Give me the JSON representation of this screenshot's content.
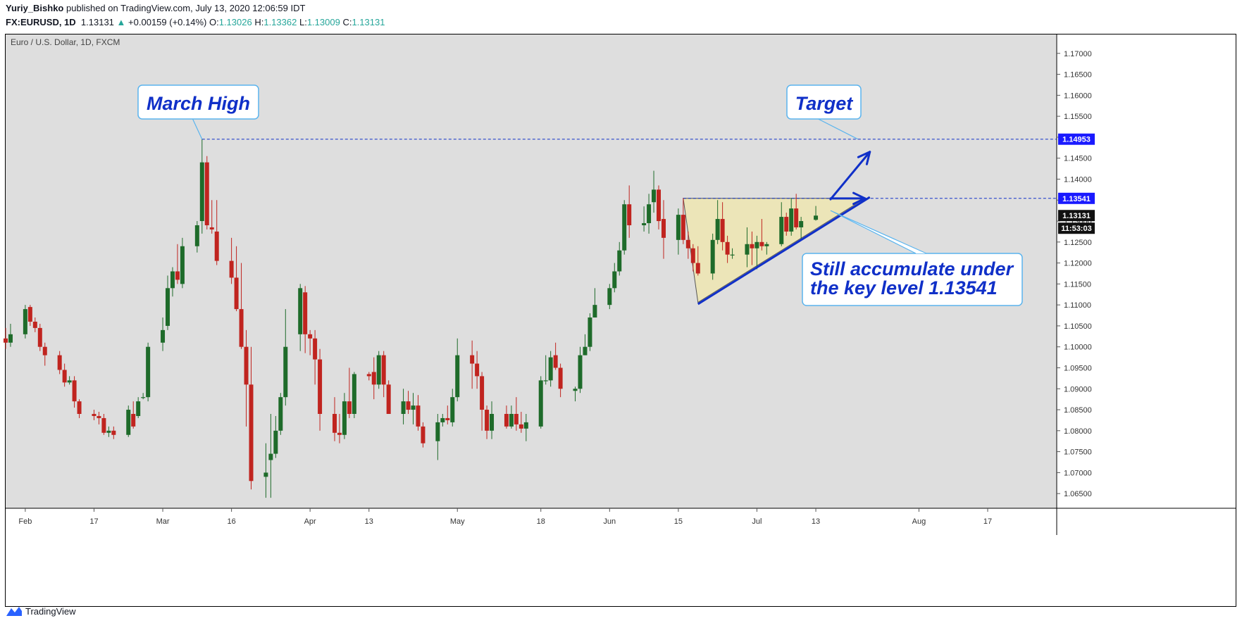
{
  "header": {
    "publisher": "Yuriy_Bishko",
    "published_text": "published on TradingView.com, July 13, 2020 12:06:59 IDT",
    "symbol": "FX:EURUSD, 1D",
    "last": "1.13131",
    "change": "+0.00159 (+0.14%)",
    "o_label": "O:",
    "o_value": "1.13026",
    "h_label": "H:",
    "h_value": "1.13362",
    "l_label": "L:",
    "l_value": "1.13009",
    "c_label": "C:",
    "c_value": "1.13131"
  },
  "footer": {
    "brand": "TradingView"
  },
  "colors": {
    "up": "#1e6b2a",
    "down": "#c0241f",
    "bg": "#dedede",
    "annotation": "#1030c8",
    "triangle": "#efe6b2"
  },
  "chart_data": {
    "type": "candlestick",
    "title": "Euro / U.S. Dollar, 1D, FXCM",
    "ylim": [
      1.0615,
      1.1745
    ],
    "y_ticks": [
      "1.17000",
      "1.16500",
      "1.16000",
      "1.15500",
      "1.15000",
      "1.14500",
      "1.14000",
      "1.13500",
      "1.13000",
      "1.12500",
      "1.12000",
      "1.11500",
      "1.11000",
      "1.10500",
      "1.10000",
      "1.09500",
      "1.09000",
      "1.08500",
      "1.08000",
      "1.07500",
      "1.07000",
      "1.06500"
    ],
    "x_ticks": [
      {
        "label": "Feb",
        "date": "2020-02-03"
      },
      {
        "label": "17",
        "date": "2020-02-17"
      },
      {
        "label": "Mar",
        "date": "2020-03-02"
      },
      {
        "label": "16",
        "date": "2020-03-16"
      },
      {
        "label": "Apr",
        "date": "2020-04-01"
      },
      {
        "label": "13",
        "date": "2020-04-13"
      },
      {
        "label": "May",
        "date": "2020-05-01"
      },
      {
        "label": "18",
        "date": "2020-05-18"
      },
      {
        "label": "Jun",
        "date": "2020-06-01"
      },
      {
        "label": "15",
        "date": "2020-06-15"
      },
      {
        "label": "Jul",
        "date": "2020-07-01"
      },
      {
        "label": "13",
        "date": "2020-07-13"
      },
      {
        "label": "Aug",
        "date": "2020-08-03"
      },
      {
        "label": "17",
        "date": "2020-08-17"
      }
    ],
    "price_labels": [
      {
        "value": "1.14953",
        "style": "blue"
      },
      {
        "value": "1.13541",
        "style": "blue"
      },
      {
        "value": "1.13131",
        "style": "black"
      },
      {
        "value": "11:53:03",
        "style": "black"
      }
    ],
    "levels": [
      {
        "name": "March High",
        "value": 1.14953
      },
      {
        "name": "Key level",
        "value": 1.13541
      }
    ],
    "annotations": [
      {
        "text": "March High"
      },
      {
        "text": "Target"
      },
      {
        "text_line1": "Still accumulate under",
        "text_line2": "the key level 1.13541"
      }
    ],
    "candles": [
      {
        "d": "2020-01-30",
        "o": 1.102,
        "h": 1.1045,
        "l": 1.0995,
        "c": 1.101
      },
      {
        "d": "2020-01-31",
        "o": 1.101,
        "h": 1.1055,
        "l": 1.1,
        "c": 1.103
      },
      {
        "d": "2020-02-03",
        "o": 1.103,
        "h": 1.11,
        "l": 1.102,
        "c": 1.109
      },
      {
        "d": "2020-02-04",
        "o": 1.1095,
        "h": 1.11,
        "l": 1.105,
        "c": 1.106
      },
      {
        "d": "2020-02-05",
        "o": 1.106,
        "h": 1.107,
        "l": 1.1035,
        "c": 1.1045
      },
      {
        "d": "2020-02-06",
        "o": 1.1045,
        "h": 1.1055,
        "l": 1.099,
        "c": 1.1
      },
      {
        "d": "2020-02-07",
        "o": 1.1,
        "h": 1.101,
        "l": 1.0955,
        "c": 1.098
      },
      {
        "d": "2020-02-10",
        "o": 1.098,
        "h": 1.099,
        "l": 1.0935,
        "c": 1.0945
      },
      {
        "d": "2020-02-11",
        "o": 1.0945,
        "h": 1.096,
        "l": 1.0905,
        "c": 1.0915
      },
      {
        "d": "2020-02-12",
        "o": 1.0915,
        "h": 1.093,
        "l": 1.091,
        "c": 1.092
      },
      {
        "d": "2020-02-13",
        "o": 1.092,
        "h": 1.093,
        "l": 1.0855,
        "c": 1.087
      },
      {
        "d": "2020-02-14",
        "o": 1.087,
        "h": 1.0875,
        "l": 1.083,
        "c": 1.084
      },
      {
        "d": "2020-02-17",
        "o": 1.084,
        "h": 1.085,
        "l": 1.0825,
        "c": 1.0835
      },
      {
        "d": "2020-02-18",
        "o": 1.0835,
        "h": 1.0845,
        "l": 1.0815,
        "c": 1.083
      },
      {
        "d": "2020-02-19",
        "o": 1.083,
        "h": 1.084,
        "l": 1.079,
        "c": 1.0795
      },
      {
        "d": "2020-02-20",
        "o": 1.0795,
        "h": 1.081,
        "l": 1.0785,
        "c": 1.08
      },
      {
        "d": "2020-02-21",
        "o": 1.08,
        "h": 1.081,
        "l": 1.078,
        "c": 1.079
      },
      {
        "d": "2020-02-24",
        "o": 1.079,
        "h": 1.086,
        "l": 1.0785,
        "c": 1.085
      },
      {
        "d": "2020-02-25",
        "o": 1.084,
        "h": 1.087,
        "l": 1.0805,
        "c": 1.081
      },
      {
        "d": "2020-02-26",
        "o": 1.0835,
        "h": 1.088,
        "l": 1.083,
        "c": 1.087
      },
      {
        "d": "2020-02-27",
        "o": 1.088,
        "h": 1.089,
        "l": 1.0875,
        "c": 1.088
      },
      {
        "d": "2020-02-28",
        "o": 1.088,
        "h": 1.101,
        "l": 1.087,
        "c": 1.1
      },
      {
        "d": "2020-03-02",
        "o": 1.101,
        "h": 1.107,
        "l": 1.099,
        "c": 1.104
      },
      {
        "d": "2020-03-03",
        "o": 1.105,
        "h": 1.117,
        "l": 1.104,
        "c": 1.114
      },
      {
        "d": "2020-03-04",
        "o": 1.114,
        "h": 1.119,
        "l": 1.112,
        "c": 1.118
      },
      {
        "d": "2020-03-05",
        "o": 1.118,
        "h": 1.1245,
        "l": 1.115,
        "c": 1.116
      },
      {
        "d": "2020-03-06",
        "o": 1.115,
        "h": 1.126,
        "l": 1.114,
        "c": 1.124
      },
      {
        "d": "2020-03-09",
        "o": 1.124,
        "h": 1.13,
        "l": 1.1225,
        "c": 1.129
      },
      {
        "d": "2020-03-10",
        "o": 1.13,
        "h": 1.1495,
        "l": 1.127,
        "c": 1.144
      },
      {
        "d": "2020-03-11",
        "o": 1.144,
        "h": 1.1455,
        "l": 1.128,
        "c": 1.129
      },
      {
        "d": "2020-03-12",
        "o": 1.1285,
        "h": 1.135,
        "l": 1.127,
        "c": 1.128
      },
      {
        "d": "2020-03-13",
        "o": 1.1275,
        "h": 1.135,
        "l": 1.1195,
        "c": 1.1205
      },
      {
        "d": "2020-03-16",
        "o": 1.1205,
        "h": 1.126,
        "l": 1.115,
        "c": 1.1165
      },
      {
        "d": "2020-03-17",
        "o": 1.1165,
        "h": 1.124,
        "l": 1.1085,
        "c": 1.109
      },
      {
        "d": "2020-03-18",
        "o": 1.109,
        "h": 1.12,
        "l": 1.0995,
        "c": 1.1
      },
      {
        "d": "2020-03-19",
        "o": 1.1,
        "h": 1.104,
        "l": 1.081,
        "c": 1.091
      },
      {
        "d": "2020-03-20",
        "o": 1.091,
        "h": 1.1,
        "l": 1.066,
        "c": 1.068
      },
      {
        "d": "2020-03-23",
        "o": 1.069,
        "h": 1.077,
        "l": 1.064,
        "c": 1.07
      },
      {
        "d": "2020-03-24",
        "o": 1.073,
        "h": 1.084,
        "l": 1.064,
        "c": 1.0745
      },
      {
        "d": "2020-03-25",
        "o": 1.0745,
        "h": 1.0835,
        "l": 1.0735,
        "c": 1.08
      },
      {
        "d": "2020-03-26",
        "o": 1.08,
        "h": 1.089,
        "l": 1.079,
        "c": 1.088
      },
      {
        "d": "2020-03-27",
        "o": 1.088,
        "h": 1.109,
        "l": 1.086,
        "c": 1.1
      },
      {
        "d": "2020-03-30",
        "o": 1.103,
        "h": 1.115,
        "l": 1.099,
        "c": 1.114
      },
      {
        "d": "2020-03-31",
        "o": 1.113,
        "h": 1.1145,
        "l": 1.0985,
        "c": 1.103
      },
      {
        "d": "2020-04-01",
        "o": 1.103,
        "h": 1.104,
        "l": 1.098,
        "c": 1.102
      },
      {
        "d": "2020-04-02",
        "o": 1.102,
        "h": 1.104,
        "l": 1.091,
        "c": 1.097
      },
      {
        "d": "2020-04-03",
        "o": 1.097,
        "h": 1.0995,
        "l": 1.08,
        "c": 1.084
      },
      {
        "d": "2020-04-06",
        "o": 1.084,
        "h": 1.088,
        "l": 1.0775,
        "c": 1.0795
      },
      {
        "d": "2020-04-07",
        "o": 1.0795,
        "h": 1.084,
        "l": 1.077,
        "c": 1.079
      },
      {
        "d": "2020-04-08",
        "o": 1.079,
        "h": 1.089,
        "l": 1.078,
        "c": 1.087
      },
      {
        "d": "2020-04-09",
        "o": 1.087,
        "h": 1.095,
        "l": 1.083,
        "c": 1.084
      },
      {
        "d": "2020-04-10",
        "o": 1.084,
        "h": 1.094,
        "l": 1.083,
        "c": 1.0935
      },
      {
        "d": "2020-04-13",
        "o": 1.0935,
        "h": 1.094,
        "l": 1.092,
        "c": 1.093
      },
      {
        "d": "2020-04-14",
        "o": 1.094,
        "h": 1.0975,
        "l": 1.0875,
        "c": 1.091
      },
      {
        "d": "2020-04-15",
        "o": 1.091,
        "h": 1.099,
        "l": 1.09,
        "c": 1.098
      },
      {
        "d": "2020-04-16",
        "o": 1.098,
        "h": 1.099,
        "l": 1.088,
        "c": 1.091
      },
      {
        "d": "2020-04-17",
        "o": 1.091,
        "h": 1.092,
        "l": 1.084,
        "c": 1.084
      },
      {
        "d": "2020-04-20",
        "o": 1.084,
        "h": 1.09,
        "l": 1.0815,
        "c": 1.087
      },
      {
        "d": "2020-04-21",
        "o": 1.087,
        "h": 1.0895,
        "l": 1.084,
        "c": 1.085
      },
      {
        "d": "2020-04-22",
        "o": 1.085,
        "h": 1.089,
        "l": 1.0815,
        "c": 1.086
      },
      {
        "d": "2020-04-23",
        "o": 1.086,
        "h": 1.0885,
        "l": 1.08,
        "c": 1.081
      },
      {
        "d": "2020-04-24",
        "o": 1.081,
        "h": 1.082,
        "l": 1.076,
        "c": 1.077
      },
      {
        "d": "2020-04-27",
        "o": 1.0775,
        "h": 1.084,
        "l": 1.073,
        "c": 1.082
      },
      {
        "d": "2020-04-28",
        "o": 1.082,
        "h": 1.084,
        "l": 1.081,
        "c": 1.083
      },
      {
        "d": "2020-04-29",
        "o": 1.083,
        "h": 1.086,
        "l": 1.0815,
        "c": 1.0825
      },
      {
        "d": "2020-04-30",
        "o": 1.082,
        "h": 1.09,
        "l": 1.081,
        "c": 1.088
      },
      {
        "d": "2020-05-01",
        "o": 1.088,
        "h": 1.102,
        "l": 1.087,
        "c": 1.098
      },
      {
        "d": "2020-05-04",
        "o": 1.098,
        "h": 1.1015,
        "l": 1.09,
        "c": 1.096
      },
      {
        "d": "2020-05-05",
        "o": 1.096,
        "h": 1.099,
        "l": 1.09,
        "c": 1.093
      },
      {
        "d": "2020-05-06",
        "o": 1.093,
        "h": 1.094,
        "l": 1.08,
        "c": 1.085
      },
      {
        "d": "2020-05-07",
        "o": 1.085,
        "h": 1.086,
        "l": 1.078,
        "c": 1.08
      },
      {
        "d": "2020-05-08",
        "o": 1.08,
        "h": 1.087,
        "l": 1.078,
        "c": 1.084
      },
      {
        "d": "2020-05-11",
        "o": 1.084,
        "h": 1.086,
        "l": 1.0805,
        "c": 1.081
      },
      {
        "d": "2020-05-12",
        "o": 1.081,
        "h": 1.086,
        "l": 1.0805,
        "c": 1.084
      },
      {
        "d": "2020-05-13",
        "o": 1.084,
        "h": 1.088,
        "l": 1.08,
        "c": 1.0815
      },
      {
        "d": "2020-05-14",
        "o": 1.0815,
        "h": 1.0845,
        "l": 1.0795,
        "c": 1.0805
      },
      {
        "d": "2020-05-15",
        "o": 1.0805,
        "h": 1.084,
        "l": 1.0775,
        "c": 1.082
      },
      {
        "d": "2020-05-18",
        "o": 1.081,
        "h": 1.093,
        "l": 1.0805,
        "c": 1.092
      },
      {
        "d": "2020-05-19",
        "o": 1.092,
        "h": 1.098,
        "l": 1.091,
        "c": 1.092
      },
      {
        "d": "2020-05-20",
        "o": 1.092,
        "h": 1.099,
        "l": 1.0905,
        "c": 1.0975
      },
      {
        "d": "2020-05-21",
        "o": 1.098,
        "h": 1.101,
        "l": 1.0945,
        "c": 1.095
      },
      {
        "d": "2020-05-22",
        "o": 1.095,
        "h": 1.096,
        "l": 1.088,
        "c": 1.09
      },
      {
        "d": "2020-05-25",
        "o": 1.0895,
        "h": 1.0905,
        "l": 1.087,
        "c": 1.09
      },
      {
        "d": "2020-05-26",
        "o": 1.09,
        "h": 1.1,
        "l": 1.089,
        "c": 1.098
      },
      {
        "d": "2020-05-27",
        "o": 1.098,
        "h": 1.103,
        "l": 1.098,
        "c": 1.1
      },
      {
        "d": "2020-05-28",
        "o": 1.1,
        "h": 1.108,
        "l": 1.099,
        "c": 1.107
      },
      {
        "d": "2020-05-29",
        "o": 1.107,
        "h": 1.114,
        "l": 1.107,
        "c": 1.11
      },
      {
        "d": "2020-06-01",
        "o": 1.11,
        "h": 1.115,
        "l": 1.109,
        "c": 1.114
      },
      {
        "d": "2020-06-02",
        "o": 1.114,
        "h": 1.12,
        "l": 1.113,
        "c": 1.118
      },
      {
        "d": "2020-06-03",
        "o": 1.118,
        "h": 1.125,
        "l": 1.117,
        "c": 1.123
      },
      {
        "d": "2020-06-04",
        "o": 1.123,
        "h": 1.135,
        "l": 1.122,
        "c": 1.134
      },
      {
        "d": "2020-06-05",
        "o": 1.134,
        "h": 1.1385,
        "l": 1.126,
        "c": 1.129
      },
      {
        "d": "2020-06-08",
        "o": 1.129,
        "h": 1.1335,
        "l": 1.1275,
        "c": 1.1295
      },
      {
        "d": "2020-06-09",
        "o": 1.1295,
        "h": 1.1365,
        "l": 1.127,
        "c": 1.134
      },
      {
        "d": "2020-06-10",
        "o": 1.1345,
        "h": 1.142,
        "l": 1.132,
        "c": 1.1375
      },
      {
        "d": "2020-06-11",
        "o": 1.1375,
        "h": 1.1385,
        "l": 1.128,
        "c": 1.13
      },
      {
        "d": "2020-06-12",
        "o": 1.1305,
        "h": 1.135,
        "l": 1.121,
        "c": 1.126
      },
      {
        "d": "2020-06-15",
        "o": 1.1255,
        "h": 1.133,
        "l": 1.122,
        "c": 1.1315
      },
      {
        "d": "2020-06-16",
        "o": 1.1315,
        "h": 1.1355,
        "l": 1.1245,
        "c": 1.1255
      },
      {
        "d": "2020-06-17",
        "o": 1.1255,
        "h": 1.1275,
        "l": 1.121,
        "c": 1.1235
      },
      {
        "d": "2020-06-18",
        "o": 1.1235,
        "h": 1.1245,
        "l": 1.118,
        "c": 1.12
      },
      {
        "d": "2020-06-19",
        "o": 1.12,
        "h": 1.124,
        "l": 1.117,
        "c": 1.1175
      },
      {
        "d": "2020-06-22",
        "o": 1.1175,
        "h": 1.127,
        "l": 1.116,
        "c": 1.1255
      },
      {
        "d": "2020-06-23",
        "o": 1.1255,
        "h": 1.135,
        "l": 1.1245,
        "c": 1.1305
      },
      {
        "d": "2020-06-24",
        "o": 1.1305,
        "h": 1.1345,
        "l": 1.123,
        "c": 1.125
      },
      {
        "d": "2020-06-25",
        "o": 1.125,
        "h": 1.1265,
        "l": 1.12,
        "c": 1.122
      },
      {
        "d": "2020-06-26",
        "o": 1.122,
        "h": 1.1235,
        "l": 1.121,
        "c": 1.122
      },
      {
        "d": "2020-06-29",
        "o": 1.122,
        "h": 1.1285,
        "l": 1.119,
        "c": 1.1245
      },
      {
        "d": "2020-06-30",
        "o": 1.1245,
        "h": 1.1275,
        "l": 1.1195,
        "c": 1.1235
      },
      {
        "d": "2020-07-01",
        "o": 1.1235,
        "h": 1.1265,
        "l": 1.1185,
        "c": 1.125
      },
      {
        "d": "2020-07-02",
        "o": 1.125,
        "h": 1.1305,
        "l": 1.123,
        "c": 1.124
      },
      {
        "d": "2020-07-03",
        "o": 1.124,
        "h": 1.125,
        "l": 1.122,
        "c": 1.1245
      },
      {
        "d": "2020-07-06",
        "o": 1.1245,
        "h": 1.1345,
        "l": 1.124,
        "c": 1.131
      },
      {
        "d": "2020-07-07",
        "o": 1.131,
        "h": 1.132,
        "l": 1.1265,
        "c": 1.1275
      },
      {
        "d": "2020-07-08",
        "o": 1.1275,
        "h": 1.1355,
        "l": 1.1265,
        "c": 1.133
      },
      {
        "d": "2020-07-09",
        "o": 1.133,
        "h": 1.1365,
        "l": 1.128,
        "c": 1.1285
      },
      {
        "d": "2020-07-10",
        "o": 1.1285,
        "h": 1.131,
        "l": 1.1255,
        "c": 1.13
      },
      {
        "d": "2020-07-13",
        "o": 1.1303,
        "h": 1.1336,
        "l": 1.1301,
        "c": 1.1313
      }
    ]
  }
}
